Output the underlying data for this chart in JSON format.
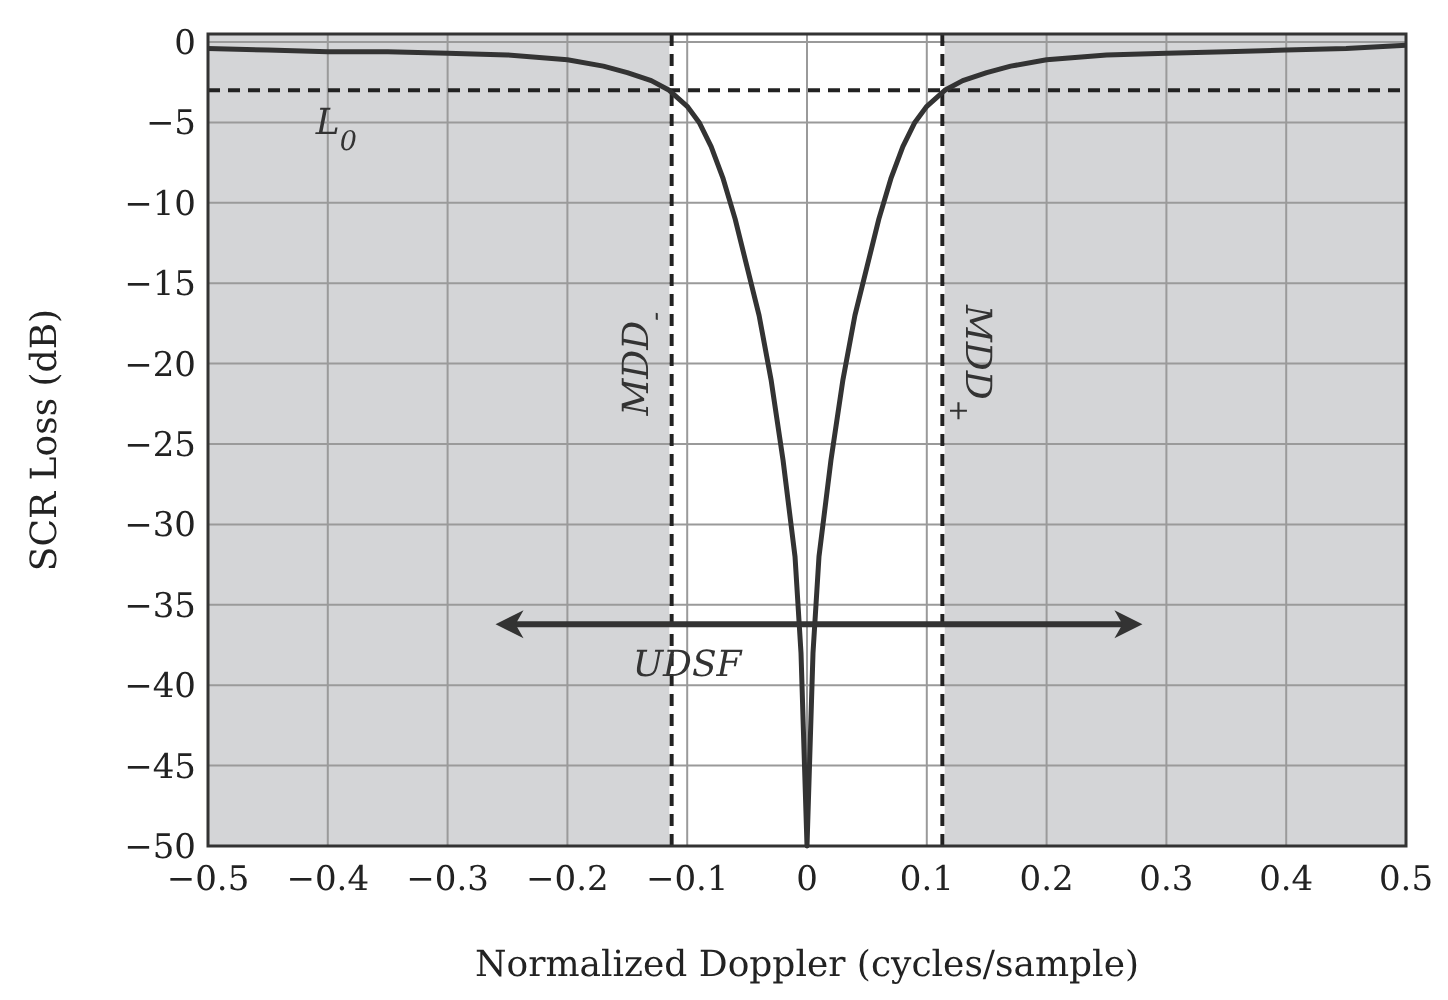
{
  "chart_data": {
    "type": "line",
    "xlabel": "Normalized Doppler (cycles/sample)",
    "ylabel": "SCR Loss (dB)",
    "xlim": [
      -0.5,
      0.5
    ],
    "xticks": [
      -0.5,
      -0.4,
      -0.3,
      -0.2,
      -0.1,
      0,
      0.1,
      0.2,
      0.3,
      0.4,
      0.5
    ],
    "ylim": [
      -50,
      0.5
    ],
    "yticks": [
      0,
      -5,
      -10,
      -15,
      -20,
      -25,
      -30,
      -35,
      -40,
      -45,
      -50
    ],
    "grid": true,
    "line_style": "solid",
    "series": [
      {
        "color": "#333333",
        "x": [
          -0.5,
          -0.45,
          -0.4,
          -0.35,
          -0.3,
          -0.25,
          -0.2,
          -0.17,
          -0.15,
          -0.13,
          -0.115,
          -0.1,
          -0.09,
          -0.08,
          -0.07,
          -0.06,
          -0.05,
          -0.04,
          -0.03,
          -0.02,
          -0.01,
          -0.005,
          0,
          0.005,
          0.01,
          0.02,
          0.03,
          0.04,
          0.05,
          0.06,
          0.07,
          0.08,
          0.09,
          0.1,
          0.115,
          0.13,
          0.15,
          0.17,
          0.2,
          0.25,
          0.3,
          0.35,
          0.4,
          0.45,
          0.5
        ],
        "values": [
          -0.4,
          -0.5,
          -0.6,
          -0.6,
          -0.7,
          -0.8,
          -1.1,
          -1.5,
          -1.9,
          -2.4,
          -3,
          -4,
          -5,
          -6.5,
          -8.5,
          -11,
          -14,
          -17,
          -21,
          -26,
          -32,
          -38,
          -50,
          -38,
          -32,
          -26,
          -21,
          -17,
          -14,
          -11,
          -8.5,
          -6.5,
          -5,
          -4,
          -3,
          -2.4,
          -1.9,
          -1.5,
          -1.1,
          -0.8,
          -0.7,
          -0.6,
          -0.5,
          -0.4,
          -0.2
        ]
      }
    ],
    "bands": [
      {
        "axis": "x",
        "from": -0.5,
        "to": -0.115,
        "color": "#d4d5d7"
      },
      {
        "axis": "x",
        "from": 0.115,
        "to": 0.5,
        "color": "#d4d5d7"
      }
    ],
    "ref_lines": [
      {
        "axis": "y",
        "value": -3,
        "label": "L$_{0}$",
        "line_style": "dashed",
        "color": "#222222"
      },
      {
        "axis": "x",
        "value": -0.113,
        "label": "MDD$_{-}$",
        "line_style": "dashed",
        "color": "#222222"
      },
      {
        "axis": "x",
        "value": 0.113,
        "label": "MDD$_{+}$",
        "line_style": "dashed",
        "color": "#222222"
      }
    ],
    "annotations": [
      "UDSF"
    ]
  }
}
